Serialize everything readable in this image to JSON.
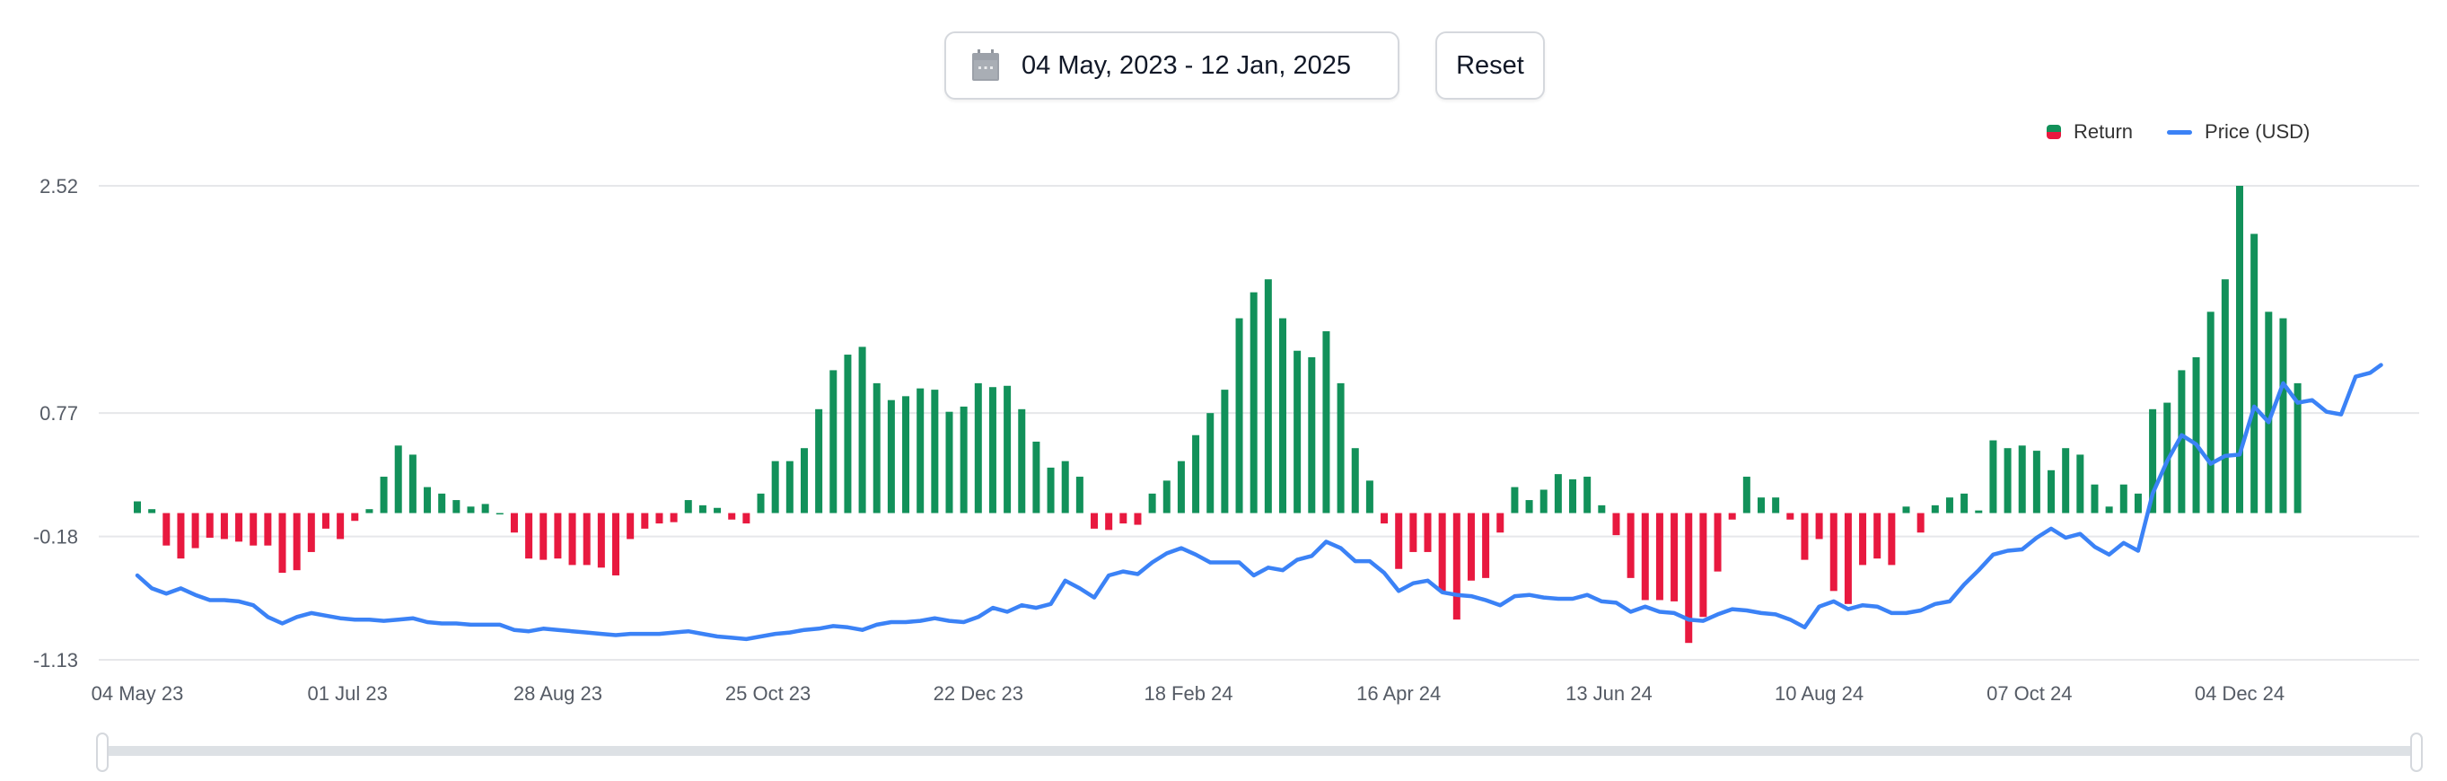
{
  "controls": {
    "date_range": "04 May, 2023 - 12 Jan, 2025",
    "reset_label": "Reset",
    "calendar_icon": "calendar-icon"
  },
  "colors": {
    "positive_bar": "#12915a",
    "negative_bar": "#e8193f",
    "price_line": "#3b82f6",
    "grid": "#e6e7ea"
  },
  "chart_data": {
    "type": "bar+line",
    "legend": [
      {
        "name": "Return",
        "type": "bar"
      },
      {
        "name": "Price (USD)",
        "type": "line"
      }
    ],
    "legend_position": "top-right",
    "grid": true,
    "ylim": [
      -1.13,
      2.52
    ],
    "y_ticks": [
      "2.52",
      "0.77",
      "-0.18",
      "-1.13"
    ],
    "y_tick_values": [
      2.52,
      0.77,
      -0.18,
      -1.13
    ],
    "x_ticks": [
      {
        "label": "04 May 23",
        "date": "2023-05-04"
      },
      {
        "label": "01 Jul 23",
        "date": "2023-07-01"
      },
      {
        "label": "28 Aug 23",
        "date": "2023-08-28"
      },
      {
        "label": "25 Oct 23",
        "date": "2023-10-25"
      },
      {
        "label": "22 Dec 23",
        "date": "2023-12-22"
      },
      {
        "label": "18 Feb 24",
        "date": "2024-02-18"
      },
      {
        "label": "16 Apr 24",
        "date": "2024-04-16"
      },
      {
        "label": "13 Jun 24",
        "date": "2024-06-13"
      },
      {
        "label": "10 Aug 24",
        "date": "2024-08-10"
      },
      {
        "label": "07 Oct 24",
        "date": "2024-10-07"
      },
      {
        "label": "04 Dec 24",
        "date": "2024-12-04"
      }
    ],
    "x": [
      "2023-05-04",
      "2023-05-08",
      "2023-05-12",
      "2023-05-16",
      "2023-05-20",
      "2023-05-24",
      "2023-05-28",
      "2023-06-01",
      "2023-06-05",
      "2023-06-09",
      "2023-06-13",
      "2023-06-17",
      "2023-06-21",
      "2023-06-25",
      "2023-06-29",
      "2023-07-03",
      "2023-07-07",
      "2023-07-11",
      "2023-07-15",
      "2023-07-19",
      "2023-07-23",
      "2023-07-27",
      "2023-07-31",
      "2023-08-04",
      "2023-08-08",
      "2023-08-12",
      "2023-08-16",
      "2023-08-20",
      "2023-08-24",
      "2023-08-28",
      "2023-09-01",
      "2023-09-05",
      "2023-09-09",
      "2023-09-13",
      "2023-09-17",
      "2023-09-21",
      "2023-09-25",
      "2023-09-29",
      "2023-10-03",
      "2023-10-07",
      "2023-10-11",
      "2023-10-15",
      "2023-10-19",
      "2023-10-23",
      "2023-10-27",
      "2023-10-31",
      "2023-11-04",
      "2023-11-08",
      "2023-11-12",
      "2023-11-16",
      "2023-11-20",
      "2023-11-24",
      "2023-11-28",
      "2023-12-02",
      "2023-12-06",
      "2023-12-10",
      "2023-12-14",
      "2023-12-18",
      "2023-12-22",
      "2023-12-26",
      "2023-12-30",
      "2024-01-03",
      "2024-01-07",
      "2024-01-11",
      "2024-01-15",
      "2024-01-19",
      "2024-01-23",
      "2024-01-27",
      "2024-01-31",
      "2024-02-04",
      "2024-02-08",
      "2024-02-12",
      "2024-02-16",
      "2024-02-20",
      "2024-02-24",
      "2024-02-28",
      "2024-03-03",
      "2024-03-07",
      "2024-03-11",
      "2024-03-15",
      "2024-03-19",
      "2024-03-23",
      "2024-03-27",
      "2024-03-31",
      "2024-04-04",
      "2024-04-08",
      "2024-04-12",
      "2024-04-16",
      "2024-04-20",
      "2024-04-24",
      "2024-04-28",
      "2024-05-02",
      "2024-05-06",
      "2024-05-10",
      "2024-05-14",
      "2024-05-18",
      "2024-05-22",
      "2024-05-26",
      "2024-05-30",
      "2024-06-03",
      "2024-06-07",
      "2024-06-11",
      "2024-06-15",
      "2024-06-19",
      "2024-06-23",
      "2024-06-27",
      "2024-07-01",
      "2024-07-05",
      "2024-07-09",
      "2024-07-13",
      "2024-07-17",
      "2024-07-21",
      "2024-07-25",
      "2024-07-29",
      "2024-08-02",
      "2024-08-06",
      "2024-08-10",
      "2024-08-14",
      "2024-08-18",
      "2024-08-22",
      "2024-08-26",
      "2024-08-30",
      "2024-09-03",
      "2024-09-07",
      "2024-09-11",
      "2024-09-15",
      "2024-09-19",
      "2024-09-23",
      "2024-09-27",
      "2024-10-01",
      "2024-10-05",
      "2024-10-09",
      "2024-10-13",
      "2024-10-17",
      "2024-10-21",
      "2024-10-25",
      "2024-10-29",
      "2024-11-02",
      "2024-11-06",
      "2024-11-10",
      "2024-11-14",
      "2024-11-18",
      "2024-11-22",
      "2024-11-26",
      "2024-11-30",
      "2024-12-04",
      "2024-12-08",
      "2024-12-12",
      "2024-12-16",
      "2024-12-20",
      "2024-12-24",
      "2024-12-28",
      "2025-01-01",
      "2025-01-05",
      "2025-01-09",
      "2025-01-12"
    ],
    "series": [
      {
        "name": "Return",
        "type": "bar",
        "values": [
          0.09,
          0.03,
          -0.25,
          -0.35,
          -0.27,
          -0.19,
          -0.2,
          -0.22,
          -0.25,
          -0.25,
          -0.46,
          -0.44,
          -0.3,
          -0.12,
          -0.2,
          -0.06,
          0.03,
          0.28,
          0.52,
          0.45,
          0.2,
          0.15,
          0.1,
          0.05,
          0.07,
          0.0,
          -0.15,
          -0.35,
          -0.36,
          -0.35,
          -0.4,
          -0.4,
          -0.42,
          -0.48,
          -0.2,
          -0.12,
          -0.08,
          -0.07,
          0.1,
          0.06,
          0.04,
          -0.05,
          -0.08,
          0.15,
          0.4,
          0.4,
          0.5,
          0.8,
          1.1,
          1.22,
          1.28,
          1.0,
          0.87,
          0.9,
          0.96,
          0.95,
          0.78,
          0.82,
          1.0,
          0.97,
          0.98,
          0.8,
          0.55,
          0.35,
          0.4,
          0.28,
          -0.12,
          -0.13,
          -0.08,
          -0.09,
          0.15,
          0.25,
          0.4,
          0.6,
          0.77,
          0.95,
          1.5,
          1.7,
          1.8,
          1.5,
          1.25,
          1.2,
          1.4,
          1.0,
          0.5,
          0.25,
          -0.08,
          -0.43,
          -0.3,
          -0.3,
          -0.6,
          -0.82,
          -0.52,
          -0.5,
          -0.15,
          0.2,
          0.1,
          0.18,
          0.3,
          0.26,
          0.28,
          0.06,
          -0.17,
          -0.5,
          -0.67,
          -0.67,
          -0.68,
          -1.0,
          -0.8,
          -0.45,
          -0.05,
          0.28,
          0.12,
          0.12,
          -0.05,
          -0.36,
          -0.2,
          -0.6,
          -0.7,
          -0.4,
          -0.35,
          -0.4,
          0.05,
          -0.15,
          0.06,
          0.12,
          0.15,
          0.02,
          0.56,
          0.5,
          0.52,
          0.48,
          0.33,
          0.5,
          0.45,
          0.22,
          0.05,
          0.22,
          0.15,
          0.8,
          0.85,
          1.1,
          1.2,
          1.55,
          1.8,
          2.52,
          2.15,
          1.55,
          1.5,
          1.0,
          null,
          null,
          null,
          null,
          null,
          null
        ]
      },
      {
        "name": "Price (USD)",
        "type": "line",
        "values": [
          -0.48,
          -0.58,
          -0.62,
          -0.58,
          -0.63,
          -0.67,
          -0.67,
          -0.68,
          -0.71,
          -0.8,
          -0.85,
          -0.8,
          -0.77,
          -0.79,
          -0.81,
          -0.82,
          -0.82,
          -0.83,
          -0.82,
          -0.81,
          -0.84,
          -0.85,
          -0.85,
          -0.86,
          -0.86,
          -0.86,
          -0.9,
          -0.91,
          -0.89,
          -0.9,
          -0.91,
          -0.92,
          -0.93,
          -0.94,
          -0.93,
          -0.93,
          -0.93,
          -0.92,
          -0.91,
          -0.93,
          -0.95,
          -0.96,
          -0.97,
          -0.95,
          -0.93,
          -0.92,
          -0.9,
          -0.89,
          -0.87,
          -0.88,
          -0.9,
          -0.86,
          -0.84,
          -0.84,
          -0.83,
          -0.81,
          -0.83,
          -0.84,
          -0.8,
          -0.73,
          -0.76,
          -0.71,
          -0.73,
          -0.7,
          -0.52,
          -0.58,
          -0.65,
          -0.48,
          -0.45,
          -0.47,
          -0.38,
          -0.31,
          -0.27,
          -0.32,
          -0.38,
          -0.38,
          -0.38,
          -0.48,
          -0.42,
          -0.44,
          -0.36,
          -0.33,
          -0.22,
          -0.27,
          -0.37,
          -0.37,
          -0.46,
          -0.6,
          -0.54,
          -0.52,
          -0.61,
          -0.63,
          -0.64,
          -0.67,
          -0.71,
          -0.64,
          -0.63,
          -0.65,
          -0.66,
          -0.66,
          -0.63,
          -0.68,
          -0.69,
          -0.76,
          -0.72,
          -0.76,
          -0.77,
          -0.82,
          -0.83,
          -0.78,
          -0.74,
          -0.75,
          -0.77,
          -0.78,
          -0.82,
          -0.88,
          -0.72,
          -0.68,
          -0.74,
          -0.71,
          -0.72,
          -0.77,
          -0.77,
          -0.75,
          -0.7,
          -0.68,
          -0.55,
          -0.44,
          -0.32,
          -0.29,
          -0.28,
          -0.19,
          -0.12,
          -0.19,
          -0.16,
          -0.26,
          -0.32,
          -0.23,
          -0.29,
          0.15,
          0.4,
          0.6,
          0.53,
          0.38,
          0.44,
          0.45,
          0.82,
          0.7,
          1.0,
          0.85,
          0.87,
          0.78,
          0.76,
          1.05,
          1.08,
          1.14
        ]
      }
    ]
  }
}
